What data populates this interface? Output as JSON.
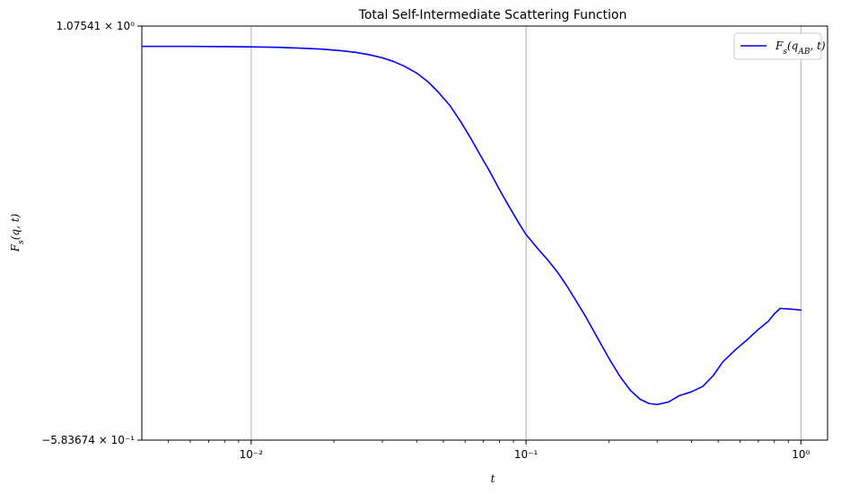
{
  "chart_data": {
    "type": "line",
    "title": "Total Self-Intermediate Scattering Function",
    "xlabel": "t",
    "ylabel": "F_s(q, t)",
    "xscale": "log",
    "xlim": [
      0.004,
      1.25
    ],
    "ylim": [
      -0.583674,
      1.07541
    ],
    "xticks": [
      {
        "value": 0.01,
        "label": "10⁻²"
      },
      {
        "value": 0.1,
        "label": "10⁻¹"
      },
      {
        "value": 1,
        "label": "10⁰"
      }
    ],
    "yticks": [
      {
        "value": 1.07541,
        "label": "1.07541 × 10⁰"
      },
      {
        "value": -0.583674,
        "label": "−5.83674 × 10⁻¹"
      }
    ],
    "grid": "x-major",
    "legend_position": "top-right",
    "series": [
      {
        "name": "F_s(q_AB, t)",
        "color": "#0000ff",
        "x": [
          0.004,
          0.006,
          0.008,
          0.01,
          0.0125,
          0.015,
          0.018,
          0.021,
          0.024,
          0.027,
          0.03,
          0.033,
          0.036,
          0.04,
          0.044,
          0.048,
          0.053,
          0.058,
          0.063,
          0.068,
          0.074,
          0.08,
          0.087,
          0.094,
          0.1,
          0.11,
          0.12,
          0.13,
          0.14,
          0.15,
          0.165,
          0.18,
          0.2,
          0.22,
          0.24,
          0.26,
          0.28,
          0.3,
          0.33,
          0.36,
          0.4,
          0.44,
          0.48,
          0.52,
          0.58,
          0.64,
          0.7,
          0.76,
          0.8,
          0.84,
          0.9,
          0.95,
          1.0
        ],
        "y": [
          0.994,
          0.994,
          0.993,
          0.992,
          0.99,
          0.987,
          0.983,
          0.977,
          0.97,
          0.96,
          0.948,
          0.933,
          0.915,
          0.887,
          0.852,
          0.81,
          0.755,
          0.69,
          0.625,
          0.56,
          0.49,
          0.42,
          0.35,
          0.287,
          0.24,
          0.185,
          0.138,
          0.09,
          0.038,
          -0.015,
          -0.09,
          -0.165,
          -0.255,
          -0.33,
          -0.385,
          -0.42,
          -0.437,
          -0.441,
          -0.431,
          -0.406,
          -0.39,
          -0.368,
          -0.325,
          -0.27,
          -0.22,
          -0.18,
          -0.14,
          -0.108,
          -0.078,
          -0.056,
          -0.058,
          -0.06,
          -0.063
        ]
      }
    ]
  }
}
